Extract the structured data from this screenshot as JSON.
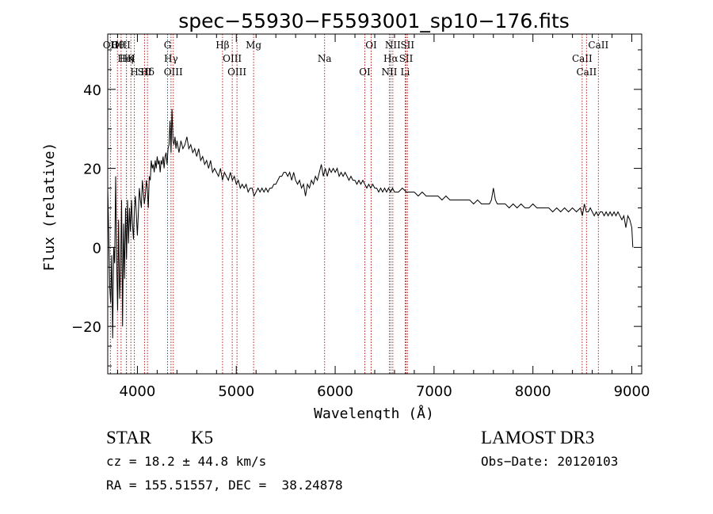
{
  "chart_data": {
    "type": "line",
    "title": "spec−55930−F5593001_sp10−176.fits",
    "xlabel": "Wavelength (Å)",
    "ylabel": "Flux (relative)",
    "xlim": [
      3700,
      9100
    ],
    "ylim": [
      -32,
      54
    ],
    "xticks": [
      4000,
      5000,
      6000,
      7000,
      8000,
      9000
    ],
    "yticks": [
      -20,
      0,
      20,
      40
    ],
    "grid": false,
    "series": [
      {
        "name": "spectrum",
        "points": [
          [
            3700,
            15
          ],
          [
            3710,
            4
          ],
          [
            3720,
            -10
          ],
          [
            3730,
            -14
          ],
          [
            3740,
            -2
          ],
          [
            3750,
            -23
          ],
          [
            3760,
            0
          ],
          [
            3770,
            -4
          ],
          [
            3780,
            18
          ],
          [
            3790,
            -3
          ],
          [
            3800,
            -16
          ],
          [
            3810,
            7
          ],
          [
            3820,
            -13
          ],
          [
            3830,
            -5
          ],
          [
            3840,
            12
          ],
          [
            3850,
            -20
          ],
          [
            3860,
            6
          ],
          [
            3870,
            -8
          ],
          [
            3880,
            10
          ],
          [
            3890,
            -3
          ],
          [
            3900,
            12
          ],
          [
            3910,
            1
          ],
          [
            3920,
            10
          ],
          [
            3930,
            4
          ],
          [
            3940,
            12
          ],
          [
            3950,
            6
          ],
          [
            3960,
            2
          ],
          [
            3970,
            10
          ],
          [
            3980,
            13
          ],
          [
            3990,
            8
          ],
          [
            4000,
            3
          ],
          [
            4010,
            9
          ],
          [
            4020,
            15
          ],
          [
            4030,
            12
          ],
          [
            4040,
            10
          ],
          [
            4050,
            17
          ],
          [
            4060,
            14
          ],
          [
            4070,
            11
          ],
          [
            4080,
            13
          ],
          [
            4090,
            17
          ],
          [
            4100,
            15
          ],
          [
            4110,
            10
          ],
          [
            4120,
            18
          ],
          [
            4130,
            17
          ],
          [
            4140,
            22
          ],
          [
            4150,
            20
          ],
          [
            4160,
            21
          ],
          [
            4170,
            19
          ],
          [
            4180,
            22
          ],
          [
            4190,
            20
          ],
          [
            4200,
            23
          ],
          [
            4210,
            21
          ],
          [
            4220,
            22
          ],
          [
            4230,
            19
          ],
          [
            4240,
            22
          ],
          [
            4250,
            21
          ],
          [
            4260,
            23
          ],
          [
            4270,
            20
          ],
          [
            4280,
            23
          ],
          [
            4290,
            24
          ],
          [
            4300,
            21
          ],
          [
            4310,
            25
          ],
          [
            4320,
            26
          ],
          [
            4330,
            32
          ],
          [
            4340,
            24
          ],
          [
            4350,
            35
          ],
          [
            4360,
            27
          ],
          [
            4370,
            26
          ],
          [
            4380,
            28
          ],
          [
            4390,
            25
          ],
          [
            4400,
            27
          ],
          [
            4420,
            24
          ],
          [
            4440,
            27
          ],
          [
            4460,
            25
          ],
          [
            4480,
            26
          ],
          [
            4500,
            28
          ],
          [
            4520,
            25
          ],
          [
            4540,
            26
          ],
          [
            4560,
            24
          ],
          [
            4580,
            25
          ],
          [
            4600,
            23
          ],
          [
            4620,
            25
          ],
          [
            4640,
            22
          ],
          [
            4660,
            23
          ],
          [
            4680,
            21
          ],
          [
            4700,
            22
          ],
          [
            4720,
            20
          ],
          [
            4740,
            22
          ],
          [
            4760,
            19
          ],
          [
            4780,
            20
          ],
          [
            4800,
            19
          ],
          [
            4820,
            18
          ],
          [
            4840,
            20
          ],
          [
            4860,
            17
          ],
          [
            4880,
            19
          ],
          [
            4900,
            18
          ],
          [
            4920,
            17
          ],
          [
            4940,
            19
          ],
          [
            4960,
            17
          ],
          [
            4980,
            18
          ],
          [
            5000,
            16
          ],
          [
            5020,
            17
          ],
          [
            5040,
            15
          ],
          [
            5060,
            16
          ],
          [
            5080,
            15
          ],
          [
            5100,
            16
          ],
          [
            5120,
            14
          ],
          [
            5140,
            15
          ],
          [
            5160,
            15
          ],
          [
            5180,
            13
          ],
          [
            5200,
            14
          ],
          [
            5220,
            15
          ],
          [
            5240,
            14
          ],
          [
            5260,
            15
          ],
          [
            5280,
            14
          ],
          [
            5300,
            15
          ],
          [
            5320,
            14
          ],
          [
            5340,
            15
          ],
          [
            5360,
            15
          ],
          [
            5380,
            16
          ],
          [
            5400,
            16
          ],
          [
            5420,
            17
          ],
          [
            5440,
            18
          ],
          [
            5460,
            18
          ],
          [
            5480,
            19
          ],
          [
            5500,
            19
          ],
          [
            5520,
            18
          ],
          [
            5540,
            19
          ],
          [
            5560,
            17
          ],
          [
            5580,
            19
          ],
          [
            5600,
            17
          ],
          [
            5620,
            16
          ],
          [
            5640,
            17
          ],
          [
            5660,
            15
          ],
          [
            5680,
            16
          ],
          [
            5700,
            13
          ],
          [
            5720,
            16
          ],
          [
            5740,
            15
          ],
          [
            5760,
            17
          ],
          [
            5780,
            16
          ],
          [
            5800,
            18
          ],
          [
            5820,
            17
          ],
          [
            5840,
            19
          ],
          [
            5860,
            21
          ],
          [
            5880,
            18
          ],
          [
            5900,
            20
          ],
          [
            5920,
            18
          ],
          [
            5940,
            20
          ],
          [
            5960,
            19
          ],
          [
            5980,
            20
          ],
          [
            6000,
            19
          ],
          [
            6020,
            20
          ],
          [
            6040,
            18
          ],
          [
            6060,
            19
          ],
          [
            6080,
            18
          ],
          [
            6100,
            19
          ],
          [
            6120,
            18
          ],
          [
            6140,
            17
          ],
          [
            6160,
            18
          ],
          [
            6180,
            17
          ],
          [
            6200,
            17
          ],
          [
            6220,
            16
          ],
          [
            6240,
            17
          ],
          [
            6260,
            16
          ],
          [
            6280,
            17
          ],
          [
            6300,
            16
          ],
          [
            6320,
            15
          ],
          [
            6340,
            16
          ],
          [
            6360,
            15
          ],
          [
            6380,
            16
          ],
          [
            6400,
            15
          ],
          [
            6420,
            15
          ],
          [
            6440,
            14
          ],
          [
            6460,
            15
          ],
          [
            6480,
            14
          ],
          [
            6500,
            15
          ],
          [
            6520,
            14
          ],
          [
            6540,
            15
          ],
          [
            6560,
            14
          ],
          [
            6580,
            15
          ],
          [
            6600,
            14
          ],
          [
            6640,
            14
          ],
          [
            6680,
            15
          ],
          [
            6720,
            14
          ],
          [
            6760,
            14
          ],
          [
            6800,
            14
          ],
          [
            6840,
            13
          ],
          [
            6880,
            14
          ],
          [
            6920,
            13
          ],
          [
            6960,
            13
          ],
          [
            7000,
            13
          ],
          [
            7040,
            13
          ],
          [
            7080,
            12
          ],
          [
            7120,
            13
          ],
          [
            7160,
            12
          ],
          [
            7200,
            12
          ],
          [
            7240,
            12
          ],
          [
            7280,
            12
          ],
          [
            7320,
            12
          ],
          [
            7360,
            12
          ],
          [
            7400,
            11
          ],
          [
            7440,
            12
          ],
          [
            7480,
            11
          ],
          [
            7520,
            11
          ],
          [
            7560,
            11
          ],
          [
            7580,
            12
          ],
          [
            7600,
            15
          ],
          [
            7620,
            12
          ],
          [
            7640,
            11
          ],
          [
            7680,
            11
          ],
          [
            7720,
            11
          ],
          [
            7760,
            10
          ],
          [
            7800,
            11
          ],
          [
            7840,
            10
          ],
          [
            7880,
            11
          ],
          [
            7920,
            10
          ],
          [
            7960,
            10
          ],
          [
            8000,
            11
          ],
          [
            8040,
            10
          ],
          [
            8080,
            10
          ],
          [
            8120,
            10
          ],
          [
            8160,
            10
          ],
          [
            8200,
            9
          ],
          [
            8240,
            10
          ],
          [
            8280,
            9
          ],
          [
            8320,
            10
          ],
          [
            8360,
            9
          ],
          [
            8400,
            10
          ],
          [
            8440,
            9
          ],
          [
            8480,
            10
          ],
          [
            8500,
            8
          ],
          [
            8520,
            11
          ],
          [
            8540,
            9
          ],
          [
            8560,
            9
          ],
          [
            8580,
            10
          ],
          [
            8600,
            9
          ],
          [
            8620,
            8
          ],
          [
            8640,
            9
          ],
          [
            8660,
            8
          ],
          [
            8680,
            9
          ],
          [
            8700,
            9
          ],
          [
            8720,
            8
          ],
          [
            8740,
            9
          ],
          [
            8760,
            8
          ],
          [
            8780,
            9
          ],
          [
            8800,
            8
          ],
          [
            8820,
            9
          ],
          [
            8840,
            8
          ],
          [
            8860,
            9
          ],
          [
            8880,
            8
          ],
          [
            8900,
            7
          ],
          [
            8920,
            8
          ],
          [
            8940,
            5
          ],
          [
            8960,
            8
          ],
          [
            8980,
            7
          ],
          [
            9000,
            5
          ],
          [
            9010,
            0
          ]
        ]
      }
    ],
    "line_markers": [
      {
        "label": "Hθ",
        "wavelength": 3798
      },
      {
        "label": "K",
        "wavelength": 3934
      },
      {
        "label": "Hδ",
        "wavelength": 4102
      },
      {
        "label": "OII",
        "wavelength": 3727
      },
      {
        "label": "HeI",
        "wavelength": 3889
      },
      {
        "label": "SII",
        "wavelength": 4072
      },
      {
        "label": "OIII",
        "wavelength": 3835
      },
      {
        "label": "Hη",
        "wavelength": 3889
      },
      {
        "label": "H",
        "wavelength": 3969
      },
      {
        "label": "G",
        "wavelength": 4305
      },
      {
        "label": "Hγ",
        "wavelength": 4340
      },
      {
        "label": "OIII",
        "wavelength": 4363
      },
      {
        "label": "Hβ",
        "wavelength": 4861
      },
      {
        "label": "OIII",
        "wavelength": 4959
      },
      {
        "label": "OIII",
        "wavelength": 5007
      },
      {
        "label": "Mg",
        "wavelength": 5175
      },
      {
        "label": "Na",
        "wavelength": 5893
      },
      {
        "label": "OI",
        "wavelength": 6300
      },
      {
        "label": "OI",
        "wavelength": 6364
      },
      {
        "label": "Hα",
        "wavelength": 6563
      },
      {
        "label": "NII",
        "wavelength": 6548
      },
      {
        "label": "NII",
        "wavelength": 6583
      },
      {
        "label": "SII",
        "wavelength": 6717
      },
      {
        "label": "Li",
        "wavelength": 6708
      },
      {
        "label": "SII",
        "wavelength": 6731
      },
      {
        "label": "CaII",
        "wavelength": 8498
      },
      {
        "label": "CaII",
        "wavelength": 8542
      },
      {
        "label": "CaII",
        "wavelength": 8662
      }
    ]
  },
  "info": {
    "class": "STAR",
    "subclass": "K5",
    "survey": "LAMOST DR3",
    "velocity": "cz = 18.2 ± 44.8 km/s",
    "obs_date": "Obs−Date: 20120103",
    "coords": "RA = 155.51557, DEC =  38.24878"
  },
  "colors": {
    "spectrum": "#000000",
    "marker": "#b22222",
    "axes": "#000000"
  }
}
